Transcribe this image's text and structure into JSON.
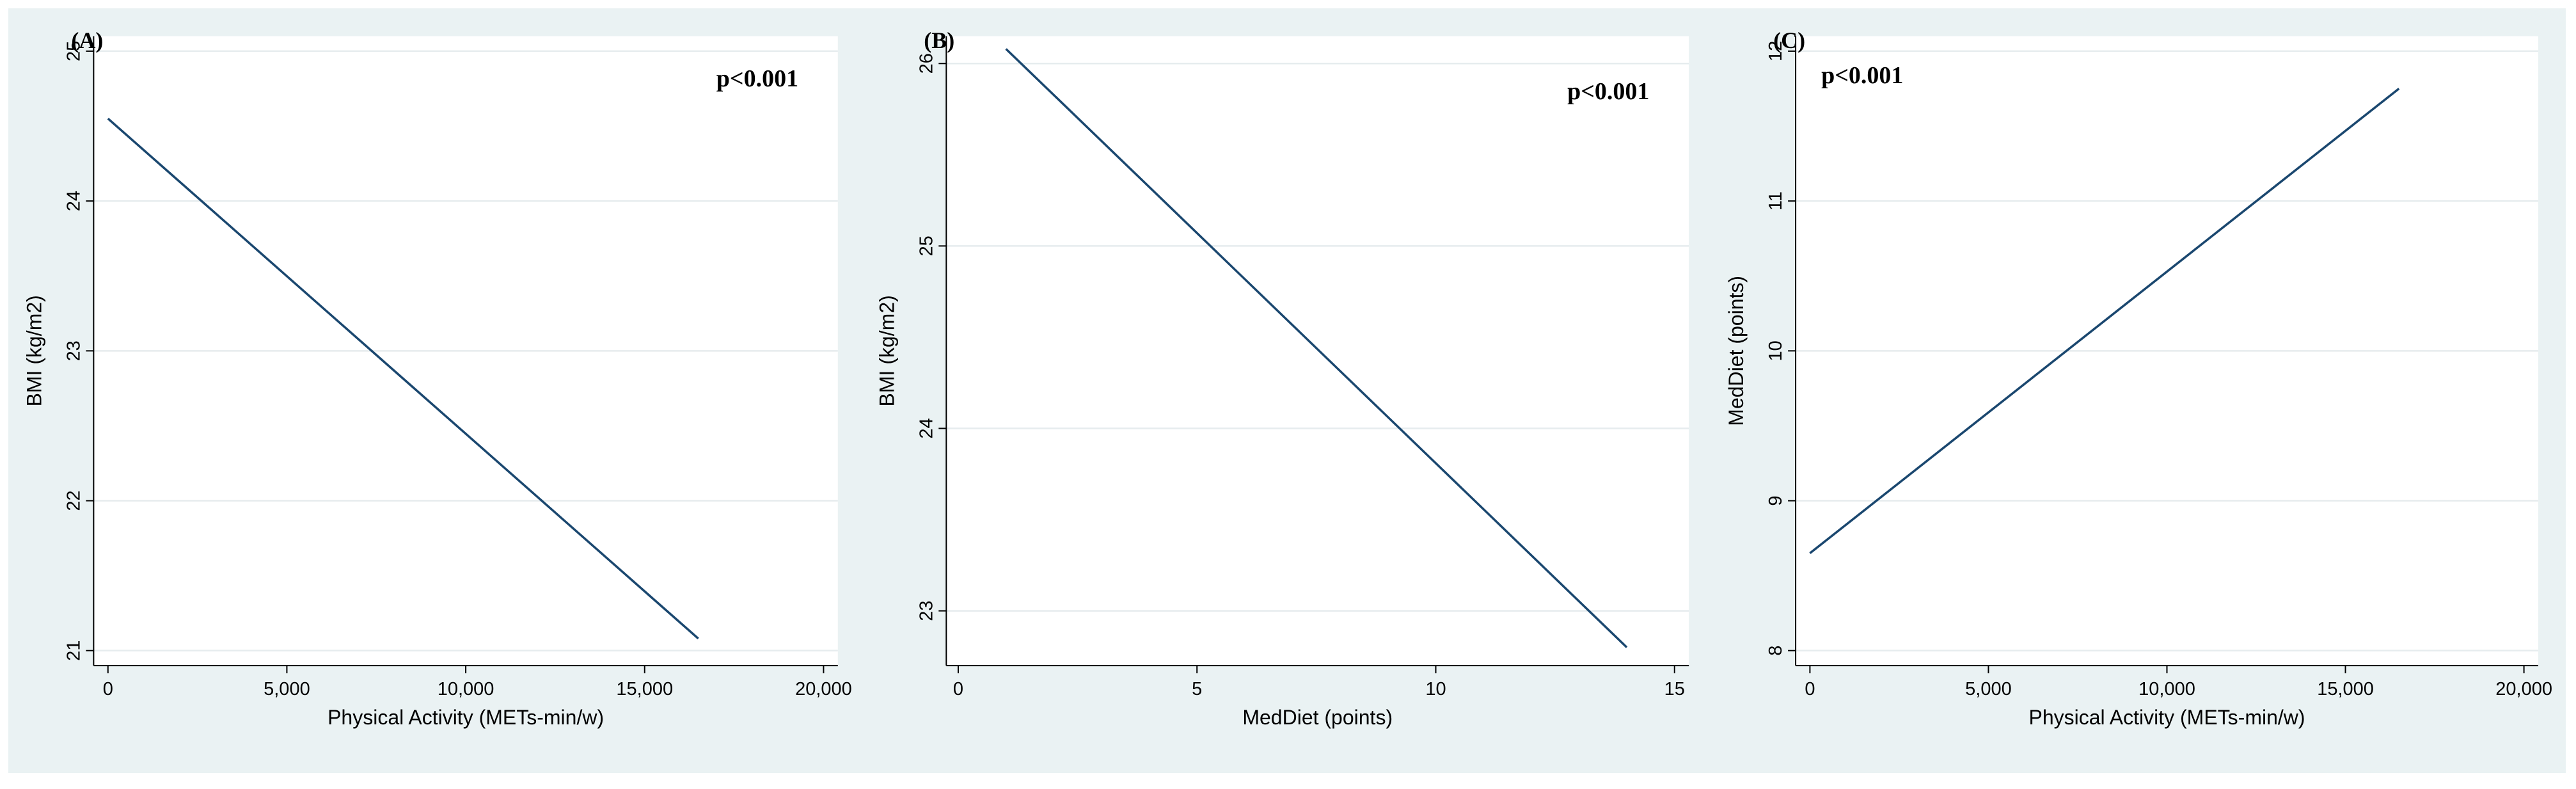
{
  "chart_data": [
    {
      "type": "line",
      "panel_label": "(A)",
      "annotation": "p<0.001",
      "x_label": "Physical Activity (METs-min/w)",
      "y_label": "BMI (kg/m2)",
      "x": [
        0,
        16500
      ],
      "values": [
        24.55,
        21.08
      ],
      "color": "#1a476f",
      "xlim": [
        -400,
        20400
      ],
      "ylim": [
        20.9,
        25.1
      ],
      "xticks": [
        0,
        {
          "value": 5000,
          "label": "5,000"
        },
        {
          "value": 10000,
          "label": "10,000"
        },
        {
          "value": 15000,
          "label": "15,000"
        },
        {
          "value": 20000,
          "label": "20,000"
        }
      ],
      "yticks": [
        21,
        22,
        23,
        24,
        25
      ],
      "grid": true
    },
    {
      "type": "line",
      "panel_label": "(B)",
      "annotation": "p<0.001",
      "x_label": "MedDiet (points)",
      "y_label": "BMI (kg/m2)",
      "x": [
        1,
        14
      ],
      "values": [
        26.08,
        22.8
      ],
      "color": "#1a476f",
      "xlim": [
        -0.25,
        15.3
      ],
      "ylim": [
        22.7,
        26.15
      ],
      "xticks": [
        0,
        5,
        10,
        15
      ],
      "yticks": [
        23,
        24,
        25,
        26
      ],
      "grid": true
    },
    {
      "type": "line",
      "panel_label": "(C)",
      "annotation": "p<0.001",
      "x_label": "Physical Activity (METs-min/w)",
      "y_label": "MedDiet (points)",
      "x": [
        0,
        16500
      ],
      "values": [
        8.65,
        11.75
      ],
      "color": "#1a476f",
      "xlim": [
        -400,
        20400
      ],
      "ylim": [
        7.9,
        12.1
      ],
      "xticks": [
        0,
        {
          "value": 5000,
          "label": "5,000"
        },
        {
          "value": 10000,
          "label": "10,000"
        },
        {
          "value": 15000,
          "label": "15,000"
        },
        {
          "value": 20000,
          "label": "20,000"
        }
      ],
      "yticks": [
        8,
        9,
        10,
        11,
        12
      ],
      "grid": true
    }
  ]
}
